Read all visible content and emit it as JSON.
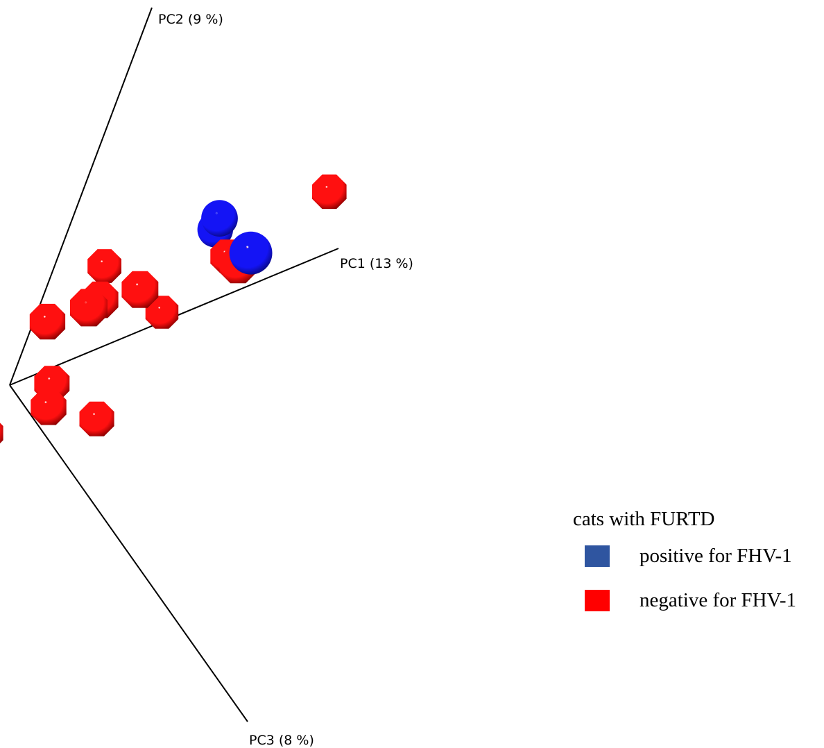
{
  "chart_data": {
    "type": "scatter",
    "subtype": "3d-pca",
    "axes": [
      {
        "name": "PC1",
        "label": "PC1 (13 %)",
        "variance_pct": 13
      },
      {
        "name": "PC2",
        "label": "PC2 (9 %)",
        "variance_pct": 9
      },
      {
        "name": "PC3",
        "label": "PC3 (8 %)",
        "variance_pct": 8
      }
    ],
    "legend": {
      "title": "cats with FURTD",
      "placement": "bottom-right",
      "items": [
        {
          "key": "positive",
          "label": "positive for FHV-1",
          "color": "#2f55a0"
        },
        {
          "key": "negative",
          "label": "negative for FHV-1",
          "color": "#ff0000"
        }
      ]
    },
    "series": [
      {
        "key": "positive",
        "color": "#1a1aff",
        "points": [
          {
            "pc1": 0.69,
            "pc2": 0.1,
            "depth": 0.92
          },
          {
            "pc1": 0.53,
            "pc2": 0.22,
            "depth": 0.55
          },
          {
            "pc1": 0.53,
            "pc2": 0.25,
            "depth": 0.6
          }
        ]
      },
      {
        "key": "negative",
        "color": "#ff0000",
        "points": [
          {
            "pc1": 0.45,
            "pc2": 0.03,
            "depth": 0.55
          },
          {
            "pc1": 0.21,
            "pc2": 0.15,
            "depth": 0.75
          },
          {
            "pc1": 0.18,
            "pc2": 0.14,
            "depth": 0.8
          },
          {
            "pc1": 0.18,
            "pc2": 0.25,
            "depth": 0.6
          },
          {
            "pc1": 0.34,
            "pc2": 0.13,
            "depth": 0.76
          },
          {
            "pc1": 0.61,
            "pc2": 0.12,
            "depth": 0.6
          },
          {
            "pc1": 0.66,
            "pc2": 0.08,
            "depth": 0.78
          },
          {
            "pc1": 0.89,
            "pc2": 0.19,
            "depth": 0.63
          },
          {
            "pc1": 0.15,
            "pc2": -0.05,
            "depth": 0.68
          },
          {
            "pc1": 0.17,
            "pc2": -0.12,
            "depth": 0.7
          },
          {
            "pc1": -0.02,
            "pc2": -0.12,
            "depth": 0.62
          },
          {
            "pc1": 0.36,
            "pc2": -0.22,
            "depth": 0.65
          },
          {
            "pc1": 0.05,
            "pc2": 0.15,
            "depth": 0.7
          }
        ]
      }
    ]
  }
}
